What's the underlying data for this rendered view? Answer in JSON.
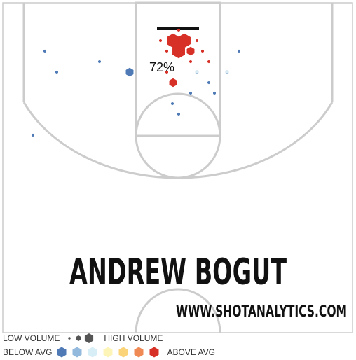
{
  "chart_data": {
    "type": "hexbin-shot-chart",
    "player": "ANDREW BOGUT",
    "site": "WWW.SHOTANALYTICS.COM",
    "annotation": "72%",
    "legend": {
      "volume_low_label": "LOW VOLUME",
      "volume_high_label": "HIGH VOLUME",
      "accuracy_low_label": "BELOW AVG",
      "accuracy_high_label": "ABOVE AVG",
      "accuracy_colors": [
        "#4f7ab5",
        "#93b9dd",
        "#d7eef6",
        "#fcf5b7",
        "#fbd379",
        "#f08a55",
        "#d73027"
      ]
    },
    "shots": [
      {
        "zone": "restricted-area",
        "size": 3,
        "accuracy": 6
      },
      {
        "zone": "restricted-area",
        "size": 3,
        "accuracy": 6
      },
      {
        "zone": "restricted-area",
        "size": 3,
        "accuracy": 6
      },
      {
        "zone": "restricted-area",
        "size": 2,
        "accuracy": 6
      },
      {
        "zone": "restricted-area",
        "size": 1,
        "accuracy": 6
      },
      {
        "zone": "restricted-area",
        "size": 1,
        "accuracy": 6
      },
      {
        "zone": "restricted-area",
        "size": 1,
        "accuracy": 6
      },
      {
        "zone": "restricted-area",
        "size": 1,
        "accuracy": 6
      },
      {
        "zone": "restricted-area",
        "size": 1,
        "accuracy": 6
      },
      {
        "zone": "restricted-area",
        "size": 1,
        "accuracy": 6
      },
      {
        "zone": "paint",
        "size": 1,
        "accuracy": 6
      },
      {
        "zone": "paint",
        "size": 1,
        "accuracy": 6
      },
      {
        "zone": "paint",
        "size": 2,
        "accuracy": 6
      },
      {
        "zone": "paint",
        "size": 1,
        "accuracy": 0
      },
      {
        "zone": "paint",
        "size": 2,
        "accuracy": 0
      },
      {
        "zone": "paint",
        "size": 1,
        "accuracy": 0
      },
      {
        "zone": "paint",
        "size": 1,
        "accuracy": 0
      },
      {
        "zone": "paint",
        "size": 1,
        "accuracy": 0
      },
      {
        "zone": "paint",
        "size": 1,
        "accuracy": 0
      },
      {
        "zone": "paint",
        "size": 1,
        "accuracy": 2
      },
      {
        "zone": "paint",
        "size": 1,
        "accuracy": 2
      },
      {
        "zone": "mid-range",
        "size": 1,
        "accuracy": 0
      },
      {
        "zone": "mid-range",
        "size": 1,
        "accuracy": 0
      },
      {
        "zone": "mid-range",
        "size": 1,
        "accuracy": 0
      },
      {
        "zone": "mid-range",
        "size": 1,
        "accuracy": 0
      },
      {
        "zone": "mid-range",
        "size": 1,
        "accuracy": 0
      }
    ]
  }
}
